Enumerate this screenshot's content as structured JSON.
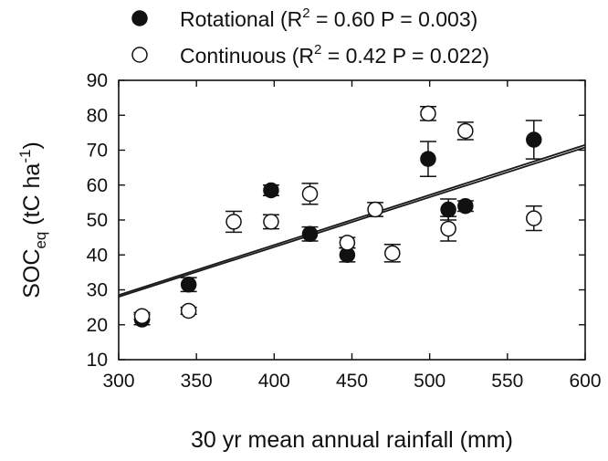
{
  "chart_data": {
    "type": "scatter",
    "title": "",
    "xlabel": "30 yr mean annual rainfall (mm)",
    "ylabel": {
      "main": "SOC",
      "sub": "eq",
      "unit_pre": " (tC ha",
      "unit_sup": "-1",
      "unit_post": ")"
    },
    "xlim": [
      300,
      600
    ],
    "ylim": [
      10,
      90
    ],
    "xticks": [
      300,
      350,
      400,
      450,
      500,
      550,
      600
    ],
    "yticks": [
      10,
      20,
      30,
      40,
      50,
      60,
      70,
      80,
      90
    ],
    "legend_position": "top-left (above plot)",
    "series": [
      {
        "name": "Rotational",
        "marker": "filled-circle",
        "legend": {
          "label": "Rotational (R",
          "sup": "2",
          "stats": " = 0.60 P = 0.003)"
        },
        "points": [
          {
            "x": 315,
            "y": 21.5,
            "err": 1.5
          },
          {
            "x": 345,
            "y": 31.5,
            "err": 2.0
          },
          {
            "x": 398,
            "y": 58.5,
            "err": 1.5
          },
          {
            "x": 423,
            "y": 46,
            "err": 2.0
          },
          {
            "x": 447,
            "y": 40,
            "err": 2.0
          },
          {
            "x": 499,
            "y": 67.5,
            "err": 5.0
          },
          {
            "x": 512,
            "y": 53,
            "err": 3.0
          },
          {
            "x": 523,
            "y": 54,
            "err": 1.5
          },
          {
            "x": 567,
            "y": 73,
            "err": 5.5
          }
        ]
      },
      {
        "name": "Continuous",
        "marker": "open-circle",
        "legend": {
          "label": "Continuous (R",
          "sup": "2",
          "stats": " = 0.42 P = 0.022)"
        },
        "points": [
          {
            "x": 315,
            "y": 22.5,
            "err": 1.0
          },
          {
            "x": 345,
            "y": 24,
            "err": 1.0
          },
          {
            "x": 374,
            "y": 49.5,
            "err": 3.0
          },
          {
            "x": 398,
            "y": 49.5,
            "err": 2.0
          },
          {
            "x": 423,
            "y": 57.5,
            "err": 3.0
          },
          {
            "x": 447,
            "y": 43.5,
            "err": 1.5
          },
          {
            "x": 465,
            "y": 53,
            "err": 2.0
          },
          {
            "x": 476,
            "y": 40.5,
            "err": 2.5
          },
          {
            "x": 499,
            "y": 80.5,
            "err": 2.0
          },
          {
            "x": 512,
            "y": 47.5,
            "err": 3.5
          },
          {
            "x": 523,
            "y": 75.5,
            "err": 2.5
          },
          {
            "x": 567,
            "y": 50.5,
            "err": 3.5
          }
        ]
      }
    ],
    "fit_lines": [
      {
        "name": "Rotational fit",
        "x": [
          300,
          600
        ],
        "y": [
          28.5,
          71.5
        ]
      },
      {
        "name": "Continuous fit",
        "x": [
          300,
          600
        ],
        "y": [
          28.0,
          70.8
        ]
      }
    ]
  }
}
